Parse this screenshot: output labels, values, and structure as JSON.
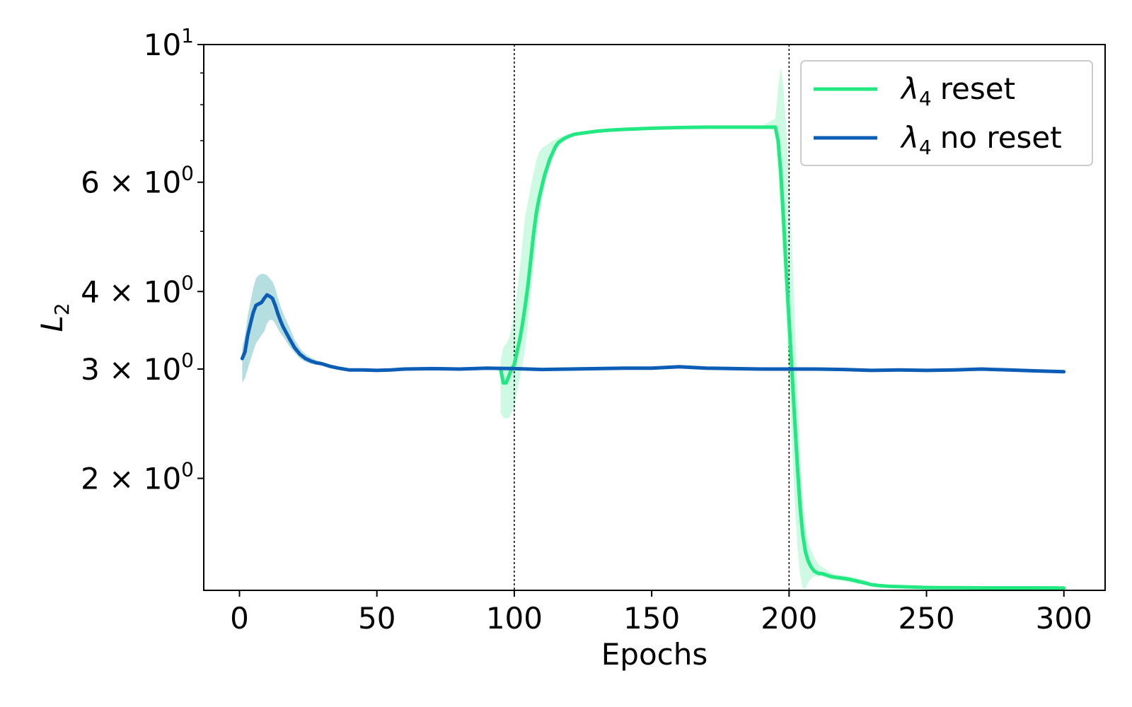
{
  "chart_data": {
    "type": "line",
    "xlabel": "Epochs",
    "ylabel": {
      "base": "L",
      "sub": "2"
    },
    "xscale": "linear",
    "yscale": "log",
    "xlim": [
      -13,
      315
    ],
    "ylim": [
      1.32,
      10
    ],
    "xticks": [
      0,
      50,
      100,
      150,
      200,
      250,
      300
    ],
    "xtick_labels": [
      "0",
      "50",
      "100",
      "150",
      "200",
      "250",
      "300"
    ],
    "yticks": [
      {
        "value": 10,
        "mant": "",
        "exp": "1"
      },
      {
        "value": 6,
        "mant": "6",
        "exp": "0"
      },
      {
        "value": 4,
        "mant": "4",
        "exp": "0"
      },
      {
        "value": 3,
        "mant": "3",
        "exp": "0"
      },
      {
        "value": 2,
        "mant": "2",
        "exp": "0"
      }
    ],
    "minor_yticks": [
      7,
      8,
      9,
      5
    ],
    "vlines": [
      100,
      200
    ],
    "grid": false,
    "legend": {
      "placement": "top-right",
      "entries": [
        {
          "greek": "λ",
          "sub": "4",
          "text": "reset",
          "color": "#22e882"
        },
        {
          "greek": "λ",
          "sub": "4",
          "text": "no reset",
          "color": "#0b5db5"
        }
      ]
    },
    "series": [
      {
        "name": "λ4 reset",
        "color": "#22e882",
        "band_color": "#22e882",
        "band_opacity": 0.22,
        "x": [
          95,
          96,
          97,
          98,
          99,
          100,
          101,
          102,
          103,
          104,
          105,
          106,
          107,
          108,
          109,
          110,
          111,
          112,
          113,
          114,
          115,
          116,
          118,
          120,
          122,
          125,
          130,
          135,
          140,
          150,
          160,
          170,
          180,
          190,
          195,
          196,
          197,
          198,
          199,
          200,
          201,
          202,
          203,
          204,
          205,
          206,
          207,
          208,
          209,
          210,
          211,
          212,
          213,
          214,
          215,
          217,
          220,
          222,
          225,
          228,
          230,
          233,
          236,
          240,
          245,
          250,
          255,
          260,
          270,
          280,
          290,
          300
        ],
        "y": [
          3.0,
          2.85,
          2.85,
          2.92,
          3.0,
          3.05,
          3.2,
          3.35,
          3.55,
          3.8,
          4.1,
          4.5,
          4.95,
          5.35,
          5.65,
          5.9,
          6.15,
          6.35,
          6.55,
          6.7,
          6.85,
          6.95,
          7.05,
          7.12,
          7.17,
          7.2,
          7.25,
          7.28,
          7.3,
          7.33,
          7.35,
          7.36,
          7.36,
          7.36,
          7.36,
          7.0,
          6.2,
          5.2,
          4.3,
          3.6,
          3.0,
          2.5,
          2.1,
          1.8,
          1.62,
          1.52,
          1.47,
          1.44,
          1.42,
          1.41,
          1.405,
          1.405,
          1.4,
          1.395,
          1.39,
          1.385,
          1.38,
          1.375,
          1.365,
          1.355,
          1.348,
          1.343,
          1.34,
          1.338,
          1.336,
          1.334,
          1.333,
          1.333,
          1.332,
          1.332,
          1.332,
          1.331
        ],
        "lower": [
          2.55,
          2.5,
          2.5,
          2.5,
          2.55,
          2.6,
          2.75,
          2.9,
          3.05,
          3.25,
          3.55,
          3.95,
          4.4,
          4.85,
          5.25,
          5.6,
          5.9,
          6.15,
          6.4,
          6.55,
          6.75,
          6.85,
          6.98,
          7.08,
          7.13,
          7.17,
          7.22,
          7.26,
          7.28,
          7.31,
          7.33,
          7.34,
          7.34,
          7.34,
          7.3,
          6.3,
          5.3,
          4.4,
          3.6,
          2.9,
          2.3,
          1.85,
          1.55,
          1.4,
          1.33,
          1.33,
          1.36,
          1.38,
          1.39,
          1.39,
          1.39,
          1.39,
          1.385,
          1.38,
          1.375,
          1.372,
          1.365,
          1.36,
          1.352,
          1.345,
          1.34,
          1.337,
          1.335,
          1.334,
          1.333,
          1.332,
          1.331,
          1.331,
          1.331,
          1.33,
          1.33,
          1.33
        ],
        "upper": [
          3.1,
          3.25,
          3.3,
          3.35,
          3.5,
          3.7,
          4.0,
          4.35,
          4.8,
          5.3,
          5.6,
          5.9,
          6.2,
          6.5,
          6.7,
          6.8,
          6.85,
          6.9,
          6.95,
          7.0,
          7.02,
          7.08,
          7.13,
          7.17,
          7.2,
          7.23,
          7.28,
          7.3,
          7.32,
          7.35,
          7.37,
          7.38,
          7.38,
          7.38,
          7.6,
          8.5,
          9.2,
          8.5,
          7.3,
          6.0,
          4.8,
          3.7,
          2.8,
          2.2,
          1.85,
          1.68,
          1.58,
          1.53,
          1.5,
          1.47,
          1.45,
          1.44,
          1.43,
          1.42,
          1.41,
          1.4,
          1.395,
          1.39,
          1.38,
          1.37,
          1.357,
          1.35,
          1.346,
          1.343,
          1.34,
          1.337,
          1.336,
          1.336,
          1.335,
          1.334,
          1.334,
          1.333
        ]
      },
      {
        "name": "λ4 no reset",
        "color": "#0b5db5",
        "band_color": "#2aa0a8",
        "band_opacity": 0.35,
        "x": [
          1,
          2,
          3,
          4,
          5,
          6,
          7,
          8,
          9,
          10,
          11,
          12,
          13,
          14,
          15,
          16,
          18,
          20,
          22,
          24,
          26,
          28,
          30,
          33,
          36,
          40,
          45,
          50,
          55,
          60,
          70,
          80,
          90,
          100,
          110,
          120,
          130,
          140,
          150,
          160,
          170,
          180,
          190,
          200,
          210,
          220,
          230,
          240,
          250,
          260,
          270,
          280,
          290,
          300
        ],
        "y": [
          3.12,
          3.2,
          3.4,
          3.55,
          3.7,
          3.8,
          3.82,
          3.84,
          3.9,
          3.95,
          3.93,
          3.9,
          3.8,
          3.68,
          3.58,
          3.5,
          3.37,
          3.25,
          3.17,
          3.12,
          3.09,
          3.07,
          3.06,
          3.03,
          3.01,
          2.99,
          2.99,
          2.985,
          2.99,
          3.0,
          3.005,
          3.0,
          3.01,
          3.005,
          2.995,
          3.0,
          3.005,
          3.01,
          3.01,
          3.025,
          3.01,
          3.005,
          3.0,
          3.0,
          3.0,
          2.995,
          2.985,
          2.99,
          2.985,
          2.99,
          3.0,
          2.99,
          2.98,
          2.97
        ],
        "lower": [
          2.85,
          2.9,
          3.0,
          3.1,
          3.2,
          3.3,
          3.35,
          3.4,
          3.45,
          3.55,
          3.6,
          3.6,
          3.55,
          3.48,
          3.42,
          3.38,
          3.27,
          3.19,
          3.12,
          3.08,
          3.06,
          3.05,
          3.04,
          3.01,
          3.0,
          2.98,
          2.98,
          2.975,
          2.98,
          2.99,
          2.995,
          2.99,
          3.0,
          2.995,
          2.985,
          2.99,
          2.995,
          3.0,
          3.0,
          3.015,
          3.0,
          2.995,
          2.99,
          2.99,
          2.99,
          2.985,
          2.975,
          2.98,
          2.975,
          2.98,
          2.99,
          2.98,
          2.97,
          2.96
        ],
        "upper": [
          3.25,
          3.4,
          3.65,
          3.85,
          4.05,
          4.2,
          4.25,
          4.27,
          4.27,
          4.25,
          4.2,
          4.15,
          4.05,
          3.9,
          3.78,
          3.68,
          3.52,
          3.35,
          3.24,
          3.17,
          3.13,
          3.1,
          3.08,
          3.05,
          3.02,
          3.0,
          3.0,
          2.995,
          3.0,
          3.01,
          3.015,
          3.01,
          3.02,
          3.015,
          3.005,
          3.01,
          3.015,
          3.02,
          3.02,
          3.035,
          3.02,
          3.015,
          3.01,
          3.01,
          3.01,
          3.005,
          2.995,
          3.0,
          2.995,
          3.0,
          3.01,
          3.0,
          2.99,
          2.98
        ]
      }
    ]
  }
}
